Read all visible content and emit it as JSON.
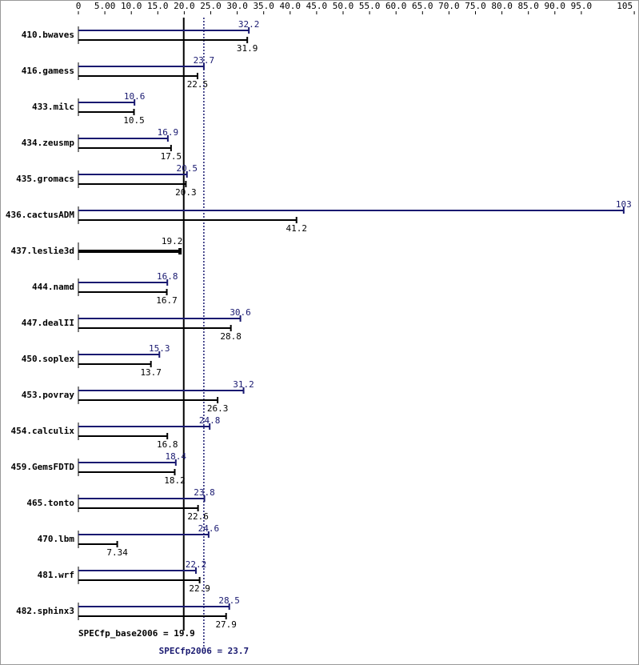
{
  "chart_data": {
    "type": "bar",
    "orientation": "horizontal",
    "categories": [
      "410.bwaves",
      "416.gamess",
      "433.milc",
      "434.zeusmp",
      "435.gromacs",
      "436.cactusADM",
      "437.leslie3d",
      "444.namd",
      "447.dealII",
      "450.soplex",
      "453.povray",
      "454.calculix",
      "459.GemsFDTD",
      "465.tonto",
      "470.lbm",
      "481.wrf",
      "482.sphinx3"
    ],
    "series": [
      {
        "color": "#191970",
        "values": [
          32.2,
          23.7,
          10.6,
          16.9,
          20.5,
          103,
          null,
          16.8,
          30.6,
          15.3,
          31.2,
          24.8,
          18.4,
          23.8,
          24.6,
          22.2,
          28.5
        ]
      },
      {
        "color": "#000000",
        "values": [
          31.9,
          22.5,
          10.5,
          17.5,
          20.3,
          41.2,
          19.2,
          16.7,
          28.8,
          13.7,
          26.3,
          16.8,
          18.2,
          22.6,
          7.34,
          22.9,
          27.9
        ]
      }
    ],
    "xlim": [
      0,
      105
    ],
    "xticks": [
      0,
      {
        "value": 5,
        "label": "5.00"
      },
      {
        "value": 10,
        "label": "10.0"
      },
      {
        "value": 15,
        "label": "15.0"
      },
      {
        "value": 20,
        "label": "20.0"
      },
      {
        "value": 25,
        "label": "25.0"
      },
      {
        "value": 30,
        "label": "30.0"
      },
      {
        "value": 35,
        "label": "35.0"
      },
      {
        "value": 40,
        "label": "40.0"
      },
      {
        "value": 45,
        "label": "45.0"
      },
      {
        "value": 50,
        "label": "50.0"
      },
      {
        "value": 55,
        "label": "55.0"
      },
      {
        "value": 60,
        "label": "60.0"
      },
      {
        "value": 65,
        "label": "65.0"
      },
      {
        "value": 70,
        "label": "70.0"
      },
      {
        "value": 75,
        "label": "75.0"
      },
      {
        "value": 80,
        "label": "80.0"
      },
      {
        "value": 85,
        "label": "85.0"
      },
      {
        "value": 90,
        "label": "90.0"
      },
      {
        "value": 95,
        "label": "95.0"
      },
      105
    ],
    "reference_lines": [
      {
        "value": 19.9,
        "label": "SPECfp_base2006 = 19.9",
        "color": "#000000",
        "style": "solid"
      },
      {
        "value": 23.7,
        "label": "SPECfp2006 = 23.7",
        "color": "#191970",
        "style": "dotted"
      }
    ]
  }
}
